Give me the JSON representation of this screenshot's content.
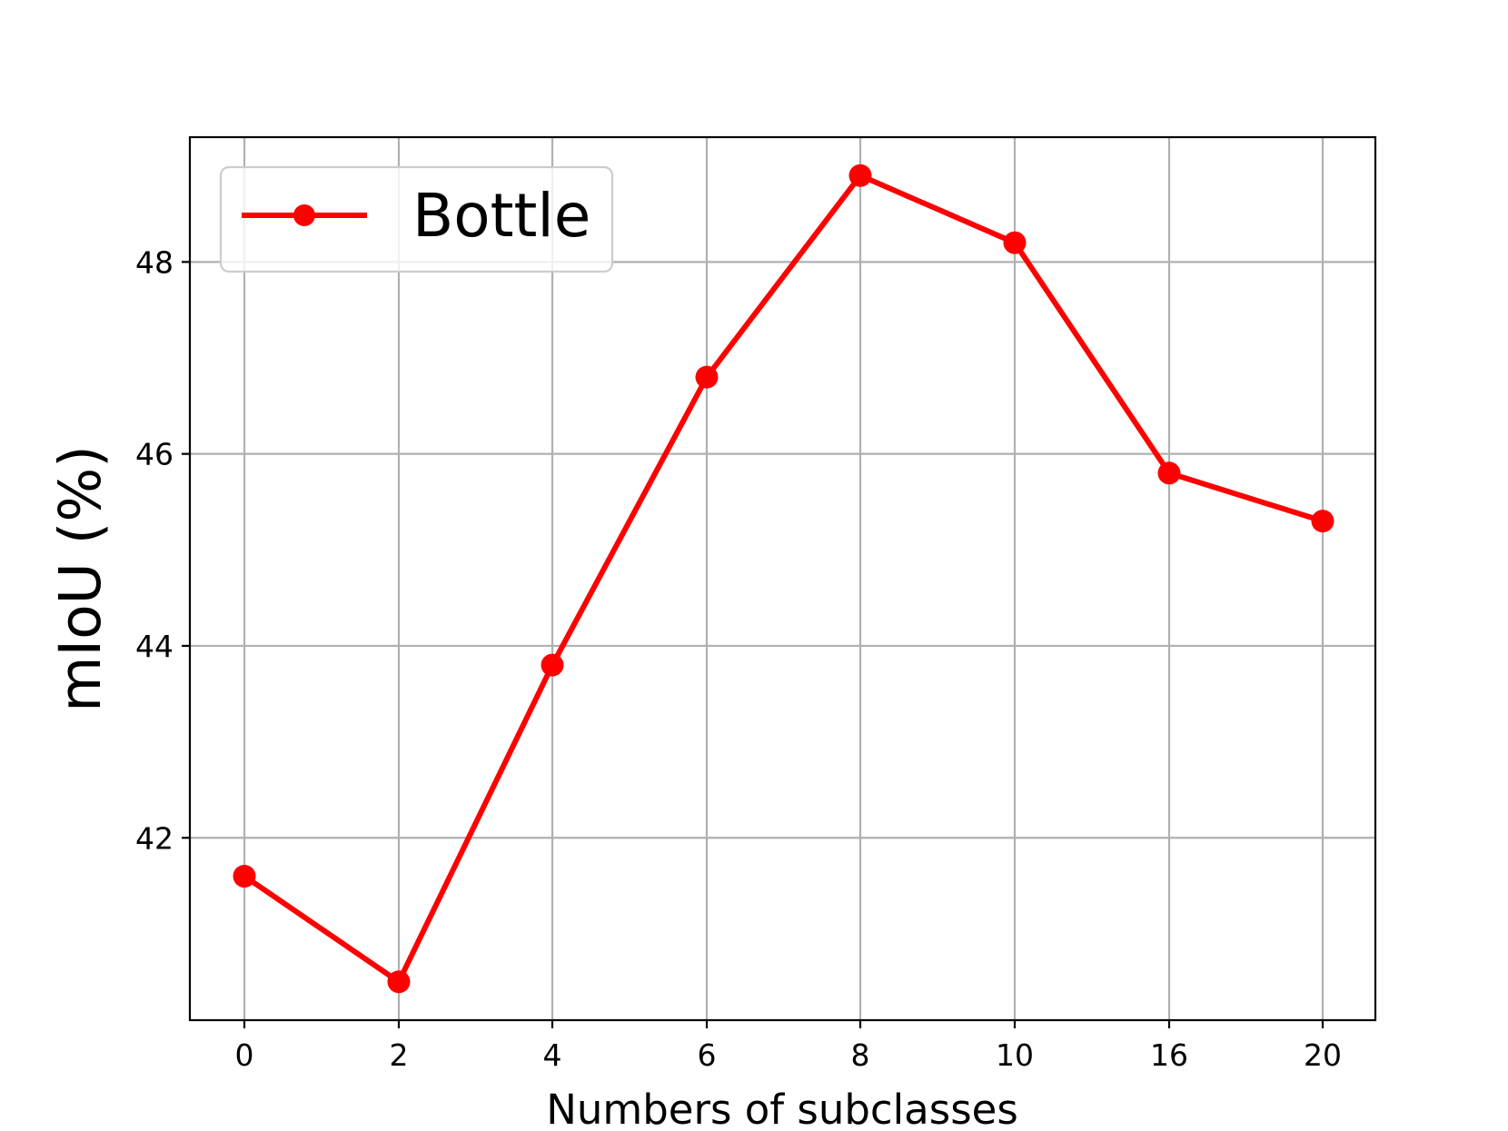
{
  "chart_data": {
    "type": "line",
    "categories": [
      "0",
      "2",
      "4",
      "6",
      "8",
      "10",
      "16",
      "20"
    ],
    "series": [
      {
        "name": "Bottle",
        "color": "#ff0000",
        "marker": "circle",
        "values": [
          41.6,
          40.5,
          43.8,
          46.8,
          48.9,
          48.2,
          45.8,
          45.3
        ]
      }
    ],
    "xlabel": "Numbers of subclasses",
    "ylabel": "mIoU (%)",
    "ylim": [
      40.1,
      49.3
    ],
    "yticks": [
      "42",
      "44",
      "46",
      "48"
    ],
    "grid": true,
    "legend_position": "top-left"
  }
}
